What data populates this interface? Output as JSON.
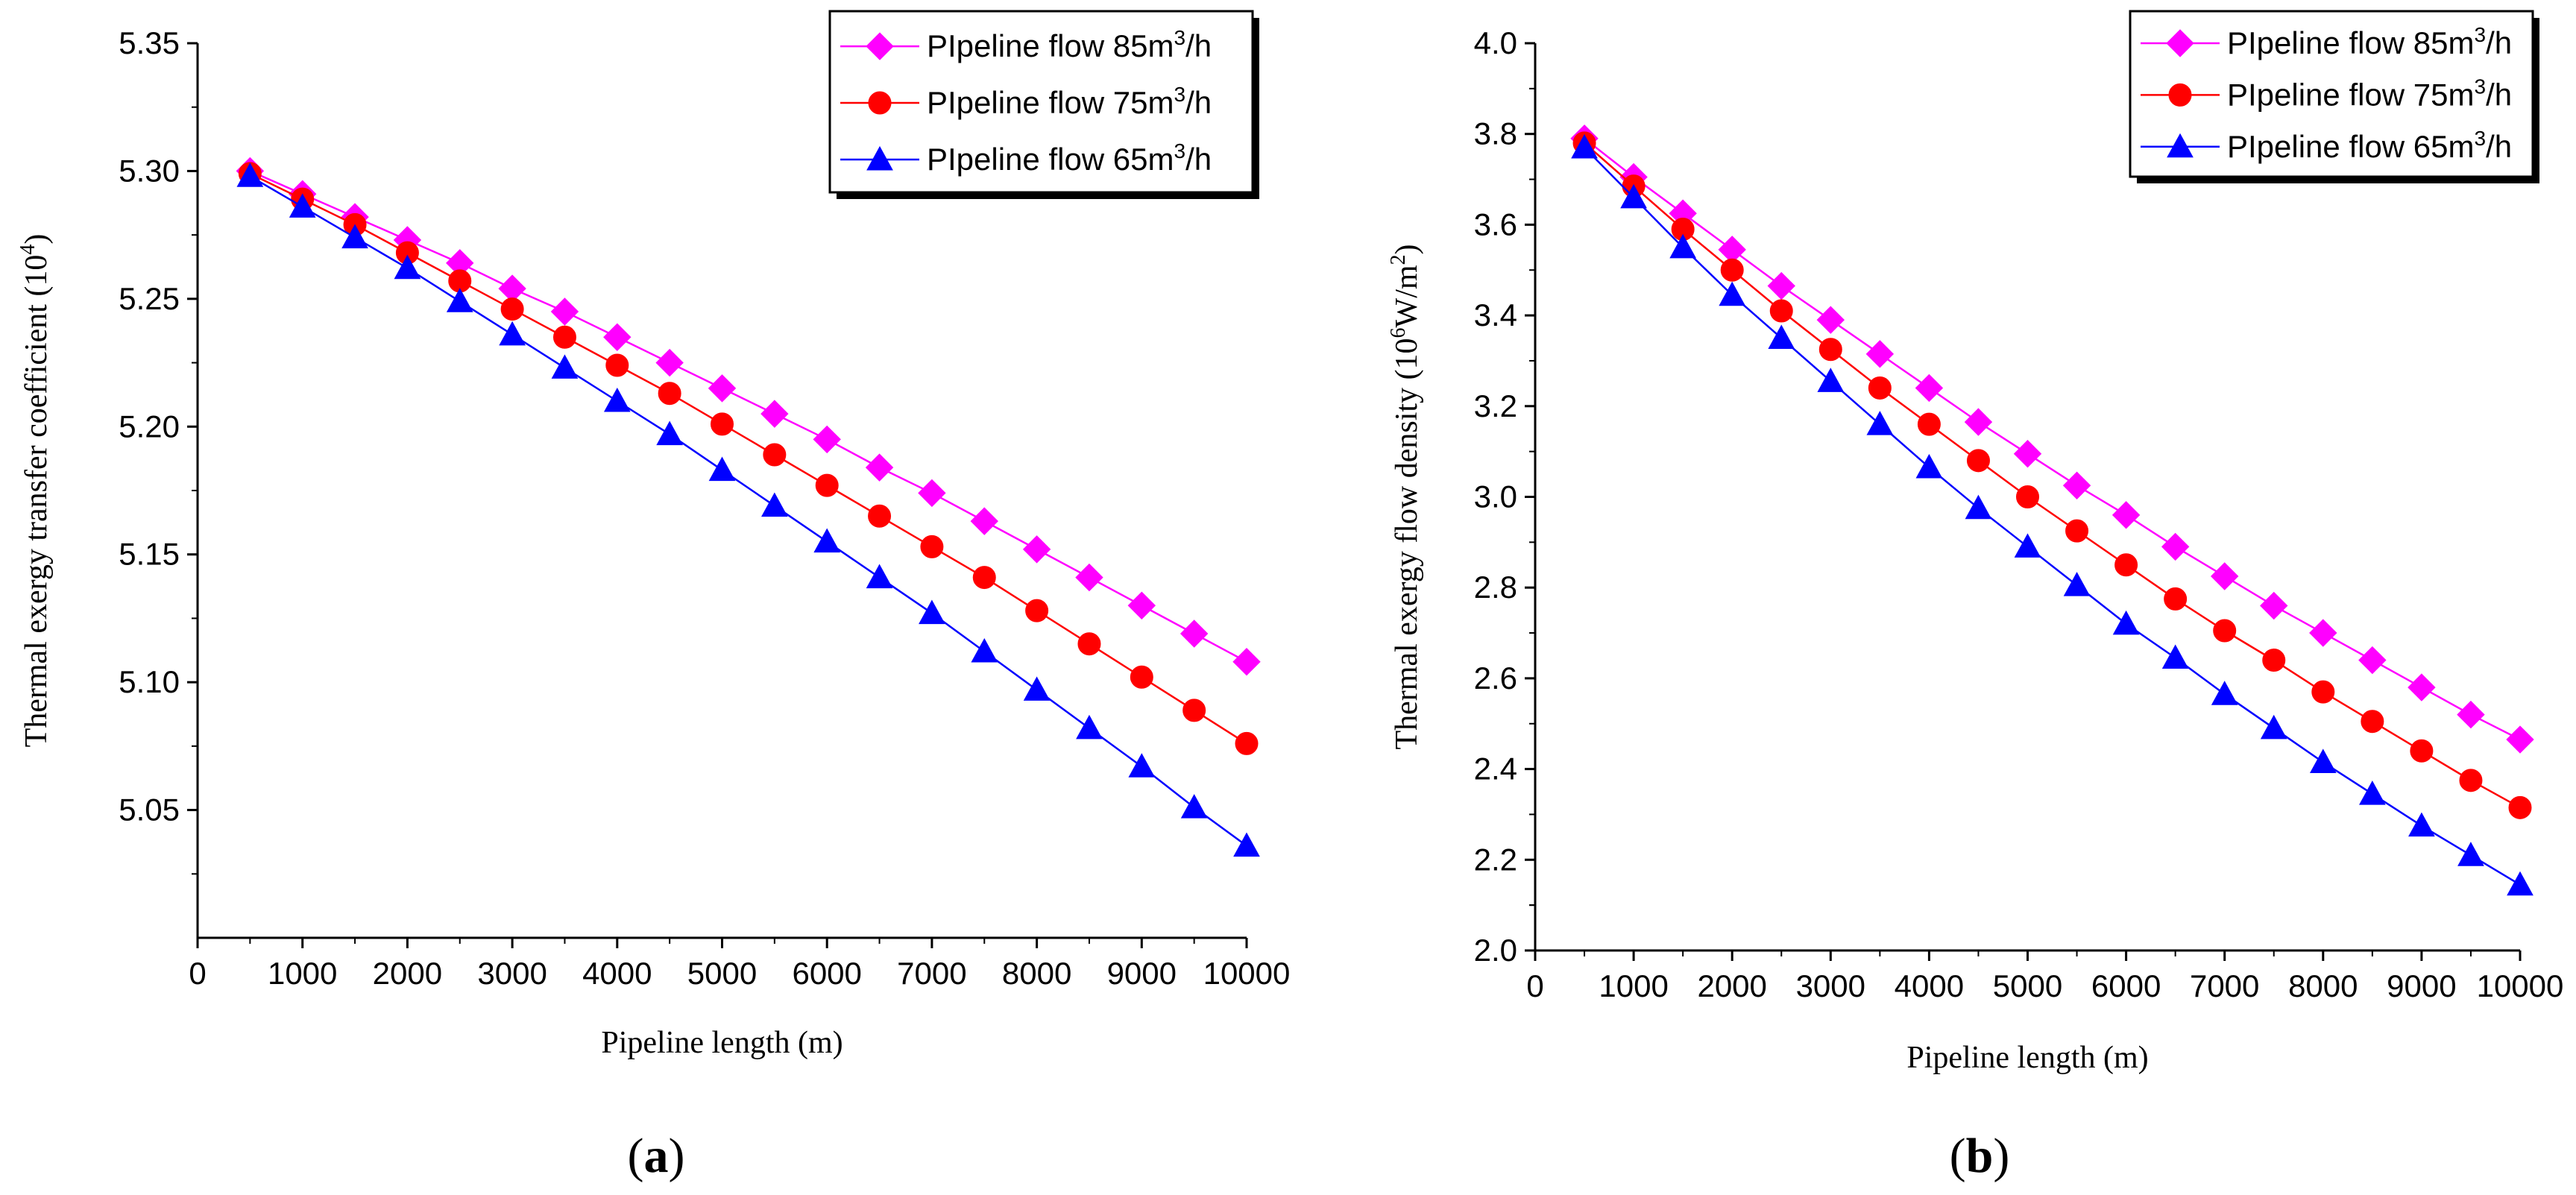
{
  "chart_data": [
    {
      "type": "line",
      "panel_label": "a",
      "xlabel": "Pipeline length (m)",
      "ylabel_main": "Thermal exergy transfer coefficient (10",
      "ylabel_sup": "4",
      "ylabel_tail": ")",
      "xlim": [
        0,
        10000
      ],
      "ylim": [
        5.0,
        5.35
      ],
      "xticks": [
        0,
        1000,
        2000,
        3000,
        4000,
        5000,
        6000,
        7000,
        8000,
        9000,
        10000
      ],
      "xtick_labels": [
        "0",
        "1000",
        "2000",
        "3000",
        "4000",
        "5000",
        "6000",
        "7000",
        "8000",
        "9000",
        "10000"
      ],
      "yticks": [
        5.05,
        5.1,
        5.15,
        5.2,
        5.25,
        5.3,
        5.35
      ],
      "ytick_labels": [
        "5.05",
        "5.10",
        "5.15",
        "5.20",
        "5.25",
        "5.30",
        "5.35"
      ],
      "legend_position": "top-right",
      "x": [
        500,
        1000,
        1500,
        2000,
        2500,
        3000,
        3500,
        4000,
        4500,
        5000,
        5500,
        6000,
        6500,
        7000,
        7500,
        8000,
        8500,
        9000,
        9500,
        10000
      ],
      "series": [
        {
          "name_main": "PIpeline flow 85m",
          "name_sup": "3",
          "name_tail": "/h",
          "color": "#ff00ff",
          "marker": "diamond",
          "values": [
            5.3,
            5.291,
            5.282,
            5.273,
            5.264,
            5.254,
            5.245,
            5.235,
            5.225,
            5.215,
            5.205,
            5.195,
            5.184,
            5.174,
            5.163,
            5.152,
            5.141,
            5.13,
            5.119,
            5.108
          ]
        },
        {
          "name_main": "PIpeline flow 75m",
          "name_sup": "3",
          "name_tail": "/h",
          "color": "#ff0000",
          "marker": "circle",
          "values": [
            5.299,
            5.289,
            5.279,
            5.268,
            5.257,
            5.246,
            5.235,
            5.224,
            5.213,
            5.201,
            5.189,
            5.177,
            5.165,
            5.153,
            5.141,
            5.128,
            5.115,
            5.102,
            5.089,
            5.076
          ]
        },
        {
          "name_main": "PIpeline flow 65m",
          "name_sup": "3",
          "name_tail": "/h",
          "color": "#0000ff",
          "marker": "triangle",
          "values": [
            5.298,
            5.286,
            5.274,
            5.262,
            5.249,
            5.236,
            5.223,
            5.21,
            5.197,
            5.183,
            5.169,
            5.155,
            5.141,
            5.127,
            5.112,
            5.097,
            5.082,
            5.067,
            5.051,
            5.036
          ]
        }
      ]
    },
    {
      "type": "line",
      "panel_label": "b",
      "xlabel": "Pipeline length (m)",
      "ylabel_main": "Thermal exergy flow density (10",
      "ylabel_sup": "6",
      "ylabel_tail": "W/m",
      "ylabel_sup2": "2",
      "ylabel_tail2": ")",
      "xlim": [
        0,
        10000
      ],
      "ylim": [
        2.0,
        4.0
      ],
      "xticks": [
        0,
        1000,
        2000,
        3000,
        4000,
        5000,
        6000,
        7000,
        8000,
        9000,
        10000
      ],
      "xtick_labels": [
        "0",
        "1000",
        "2000",
        "3000",
        "4000",
        "5000",
        "6000",
        "7000",
        "8000",
        "9000",
        "10000"
      ],
      "yticks": [
        2.0,
        2.2,
        2.4,
        2.6,
        2.8,
        3.0,
        3.2,
        3.4,
        3.6,
        3.8,
        4.0
      ],
      "ytick_labels": [
        "2.0",
        "2.2",
        "2.4",
        "2.6",
        "2.8",
        "3.0",
        "3.2",
        "3.4",
        "3.6",
        "3.8",
        "4.0"
      ],
      "legend_position": "top-right",
      "x": [
        500,
        1000,
        1500,
        2000,
        2500,
        3000,
        3500,
        4000,
        4500,
        5000,
        5500,
        6000,
        6500,
        7000,
        7500,
        8000,
        8500,
        9000,
        9500,
        10000
      ],
      "series": [
        {
          "name_main": "PIpeline flow 85m",
          "name_sup": "3",
          "name_tail": "/h",
          "color": "#ff00ff",
          "marker": "diamond",
          "values": [
            3.79,
            3.705,
            3.625,
            3.545,
            3.465,
            3.39,
            3.315,
            3.24,
            3.165,
            3.095,
            3.025,
            2.96,
            2.89,
            2.825,
            2.76,
            2.7,
            2.64,
            2.58,
            2.52,
            2.465
          ]
        },
        {
          "name_main": "PIpeline flow 75m",
          "name_sup": "3",
          "name_tail": "/h",
          "color": "#ff0000",
          "marker": "circle",
          "values": [
            3.78,
            3.685,
            3.59,
            3.5,
            3.41,
            3.325,
            3.24,
            3.16,
            3.08,
            3.0,
            2.925,
            2.85,
            2.775,
            2.705,
            2.64,
            2.57,
            2.505,
            2.44,
            2.375,
            2.315
          ]
        },
        {
          "name_main": "PIpeline flow 65m",
          "name_sup": "3",
          "name_tail": "/h",
          "color": "#0000ff",
          "marker": "triangle",
          "values": [
            3.77,
            3.66,
            3.55,
            3.445,
            3.35,
            3.255,
            3.16,
            3.065,
            2.975,
            2.89,
            2.805,
            2.72,
            2.645,
            2.565,
            2.49,
            2.415,
            2.345,
            2.275,
            2.21,
            2.145
          ]
        }
      ]
    }
  ]
}
